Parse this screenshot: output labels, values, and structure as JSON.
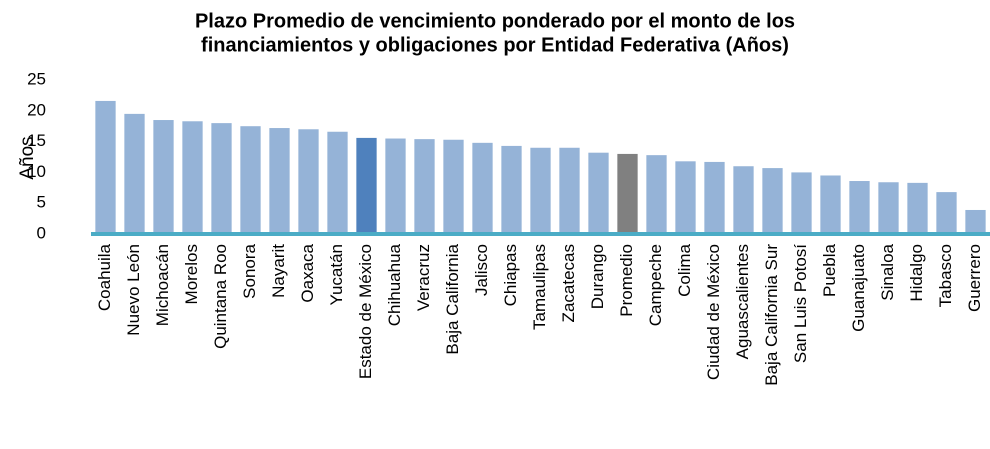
{
  "chart_data": {
    "type": "bar",
    "title": [
      "Plazo Promedio de vencimiento ponderado por el monto de los",
      "financiamientos y obligaciones por Entidad Federativa (Años)"
    ],
    "y_label": "Años",
    "categories": [
      "Coahuila",
      "Nuevo León",
      "Michoacán",
      "Morelos",
      "Quintana Roo",
      "Sonora",
      "Nayarit",
      "Oaxaca",
      "Yucatán",
      "Estado de México",
      "Chihuahua",
      "Veracruz",
      "Baja California",
      "Jalisco",
      "Chiapas",
      "Tamaulipas",
      "Zacatecas",
      "Durango",
      "Promedio",
      "Campeche",
      "Colima",
      "Ciudad de México",
      "Aguascalientes",
      "Baja California Sur",
      "San Luis Potosí",
      "Puebla",
      "Guanajuato",
      "Sinaloa",
      "Hidalgo",
      "Tabasco",
      "Guerrero"
    ],
    "values": [
      21.6,
      19.5,
      18.5,
      18.3,
      18.0,
      17.5,
      17.2,
      17.0,
      16.6,
      15.6,
      15.5,
      15.4,
      15.3,
      14.8,
      14.3,
      14.0,
      14.0,
      13.2,
      13.0,
      12.8,
      11.8,
      11.7,
      11.0,
      10.7,
      10.0,
      9.5,
      8.6,
      8.4,
      8.3,
      6.8,
      3.9
    ],
    "colors": [
      "#95b3d7",
      "#95b3d7",
      "#95b3d7",
      "#95b3d7",
      "#95b3d7",
      "#95b3d7",
      "#95b3d7",
      "#95b3d7",
      "#95b3d7",
      "#4f81bd",
      "#95b3d7",
      "#95b3d7",
      "#95b3d7",
      "#95b3d7",
      "#95b3d7",
      "#95b3d7",
      "#95b3d7",
      "#95b3d7",
      "#808080",
      "#95b3d7",
      "#95b3d7",
      "#95b3d7",
      "#95b3d7",
      "#95b3d7",
      "#95b3d7",
      "#95b3d7",
      "#95b3d7",
      "#95b3d7",
      "#95b3d7",
      "#95b3d7",
      "#95b3d7"
    ],
    "axis_color": "#4bacc6",
    "ylim": [
      0,
      25
    ],
    "yticks": [
      0,
      5,
      10,
      15,
      20,
      25
    ],
    "grid": false
  }
}
